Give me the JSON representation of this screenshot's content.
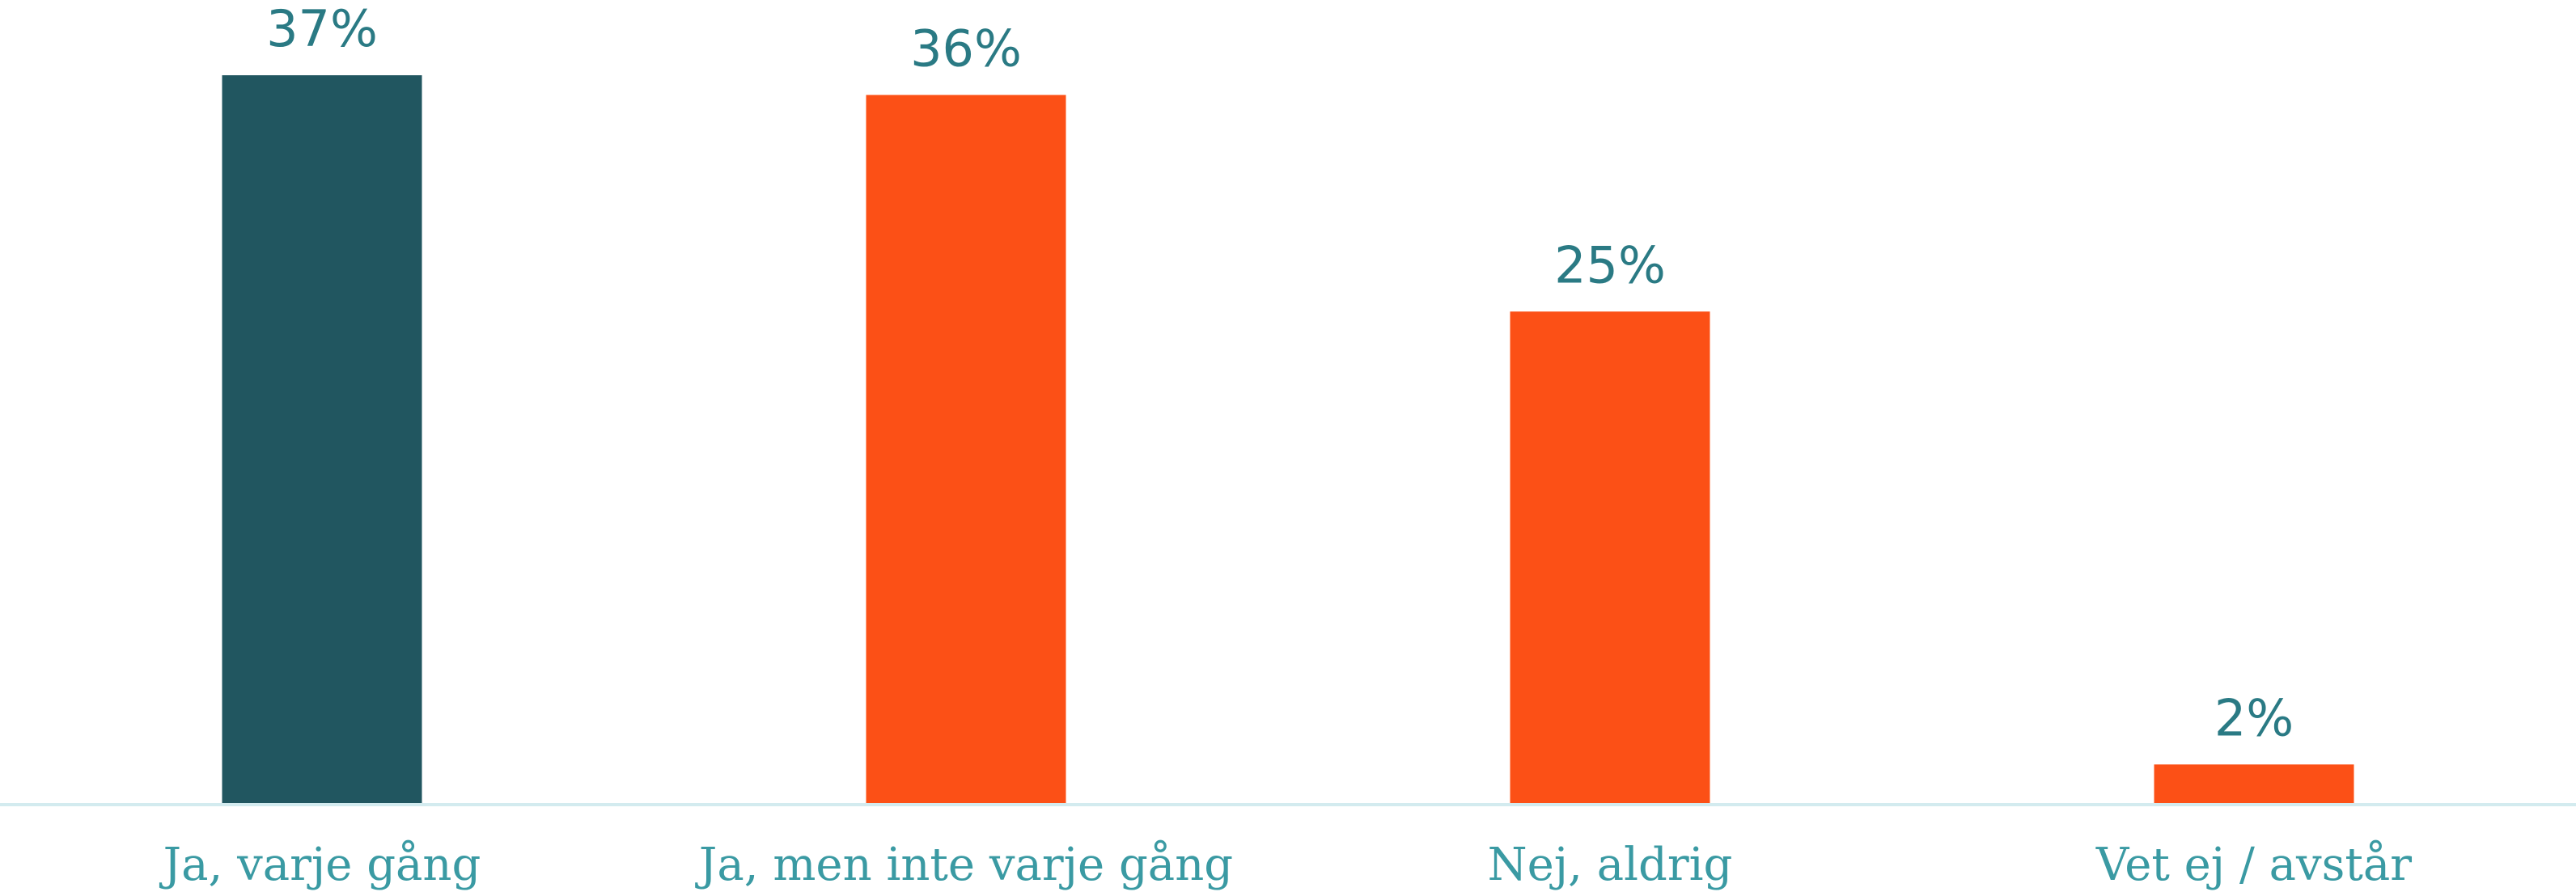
{
  "chart_data": {
    "type": "bar",
    "categories": [
      "Ja, varje gång",
      "Ja, men inte varje gång",
      "Nej, aldrig",
      "Vet ej / avstår"
    ],
    "values": [
      37,
      36,
      25,
      2
    ],
    "value_labels": [
      "37%",
      "36%",
      "25%",
      "2%"
    ],
    "bar_colors": [
      "#215660",
      "#fc5016",
      "#fc5016",
      "#fc5016"
    ],
    "axis_color": "#d3ebef",
    "value_label_color": "#2a7a84",
    "category_label_color": "#3a9aa3",
    "title": "",
    "xlabel": "",
    "ylabel": "",
    "ylim": [
      0,
      37
    ],
    "grid": false,
    "legend": "none"
  }
}
